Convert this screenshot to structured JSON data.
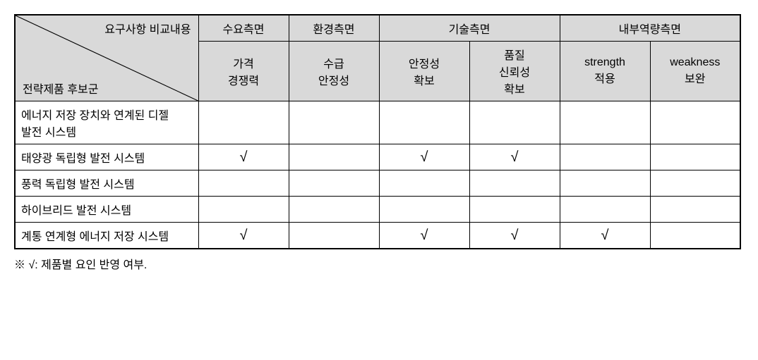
{
  "table": {
    "diag_top": "요구사항 비교내용",
    "diag_bottom": "전략제품 후보군",
    "header_groups": [
      "수요측면",
      "환경측면",
      "기술측면",
      "내부역량측면"
    ],
    "header_subs": [
      "가격\n경쟁력",
      "수급\n안정성",
      "안정성\n확보",
      "품질\n신뢰성\n확보",
      "strength\n적용",
      "weakness\n보완"
    ],
    "rows": [
      {
        "label": "에너지 저장 장치와 연계된 디젤 발전 시스템",
        "cells": [
          "",
          "",
          "",
          "",
          "",
          ""
        ]
      },
      {
        "label": "태양광 독립형 발전 시스템",
        "cells": [
          "√",
          "",
          "√",
          "√",
          "",
          ""
        ]
      },
      {
        "label": "풍력 독립형 발전 시스템",
        "cells": [
          "",
          "",
          "",
          "",
          "",
          ""
        ]
      },
      {
        "label": "하이브리드 발전 시스템",
        "cells": [
          "",
          "",
          "",
          "",
          "",
          ""
        ]
      },
      {
        "label": "계통 연계형 에너지 저장 시스템",
        "cells": [
          "√",
          "",
          "√",
          "√",
          "√",
          ""
        ]
      }
    ]
  },
  "footnote": "※  √: 제품별 요인 반영 여부.",
  "colors": {
    "header_bg": "#d9d9d9",
    "border": "#000000",
    "background": "#ffffff"
  }
}
